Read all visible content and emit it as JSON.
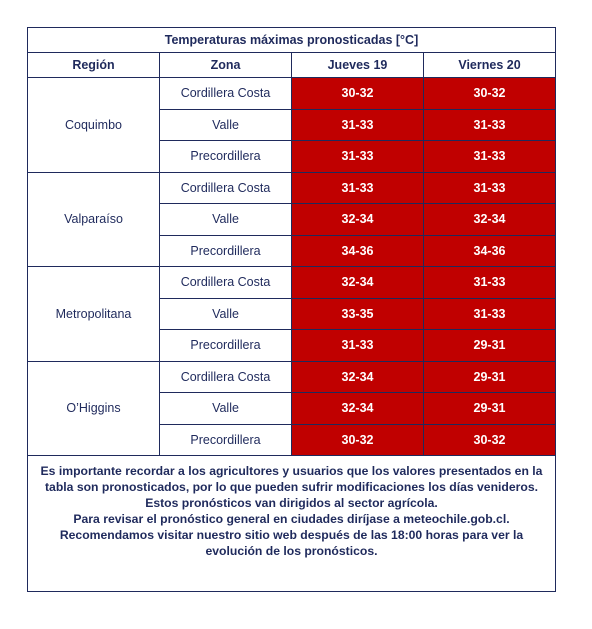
{
  "table": {
    "title": "Temperaturas máximas pronosticadas [°C]",
    "headers": [
      "Región",
      "Zona",
      "Jueves 19",
      "Viernes 20"
    ],
    "regions": [
      {
        "name": "Coquimbo",
        "rows": [
          [
            "Cordillera Costa",
            "30-32",
            "30-32"
          ],
          [
            "Valle",
            "31-33",
            "31-33"
          ],
          [
            "Precordillera",
            "31-33",
            "31-33"
          ]
        ]
      },
      {
        "name": "Valparaíso",
        "rows": [
          [
            "Cordillera Costa",
            "31-33",
            "31-33"
          ],
          [
            "Valle",
            "32-34",
            "32-34"
          ],
          [
            "Precordillera",
            "34-36",
            "34-36"
          ]
        ]
      },
      {
        "name": "Metropolitana",
        "rows": [
          [
            "Cordillera Costa",
            "32-34",
            "31-33"
          ],
          [
            "Valle",
            "33-35",
            "31-33"
          ],
          [
            "Precordillera",
            "31-33",
            "29-31"
          ]
        ]
      },
      {
        "name": "O’Higgins",
        "rows": [
          [
            "Cordillera Costa",
            "32-34",
            "29-31"
          ],
          [
            "Valle",
            "32-34",
            "29-31"
          ],
          [
            "Precordillera",
            "30-32",
            "30-32"
          ]
        ]
      }
    ]
  },
  "note": {
    "paragraphs": [
      "Es importante recordar a los agricultores y usuarios que los valores presentados en la tabla son pronosticados, por lo que pueden sufrir modificaciones los días venideros. Estos pronósticos van dirigidos al sector agrícola.",
      "Para revisar el pronóstico general en ciudades diríjase a meteochile.gob.cl.",
      "Recomendamos visitar nuestro sitio web después de las 18:00 horas para ver la evolución de los pronósticos."
    ]
  }
}
